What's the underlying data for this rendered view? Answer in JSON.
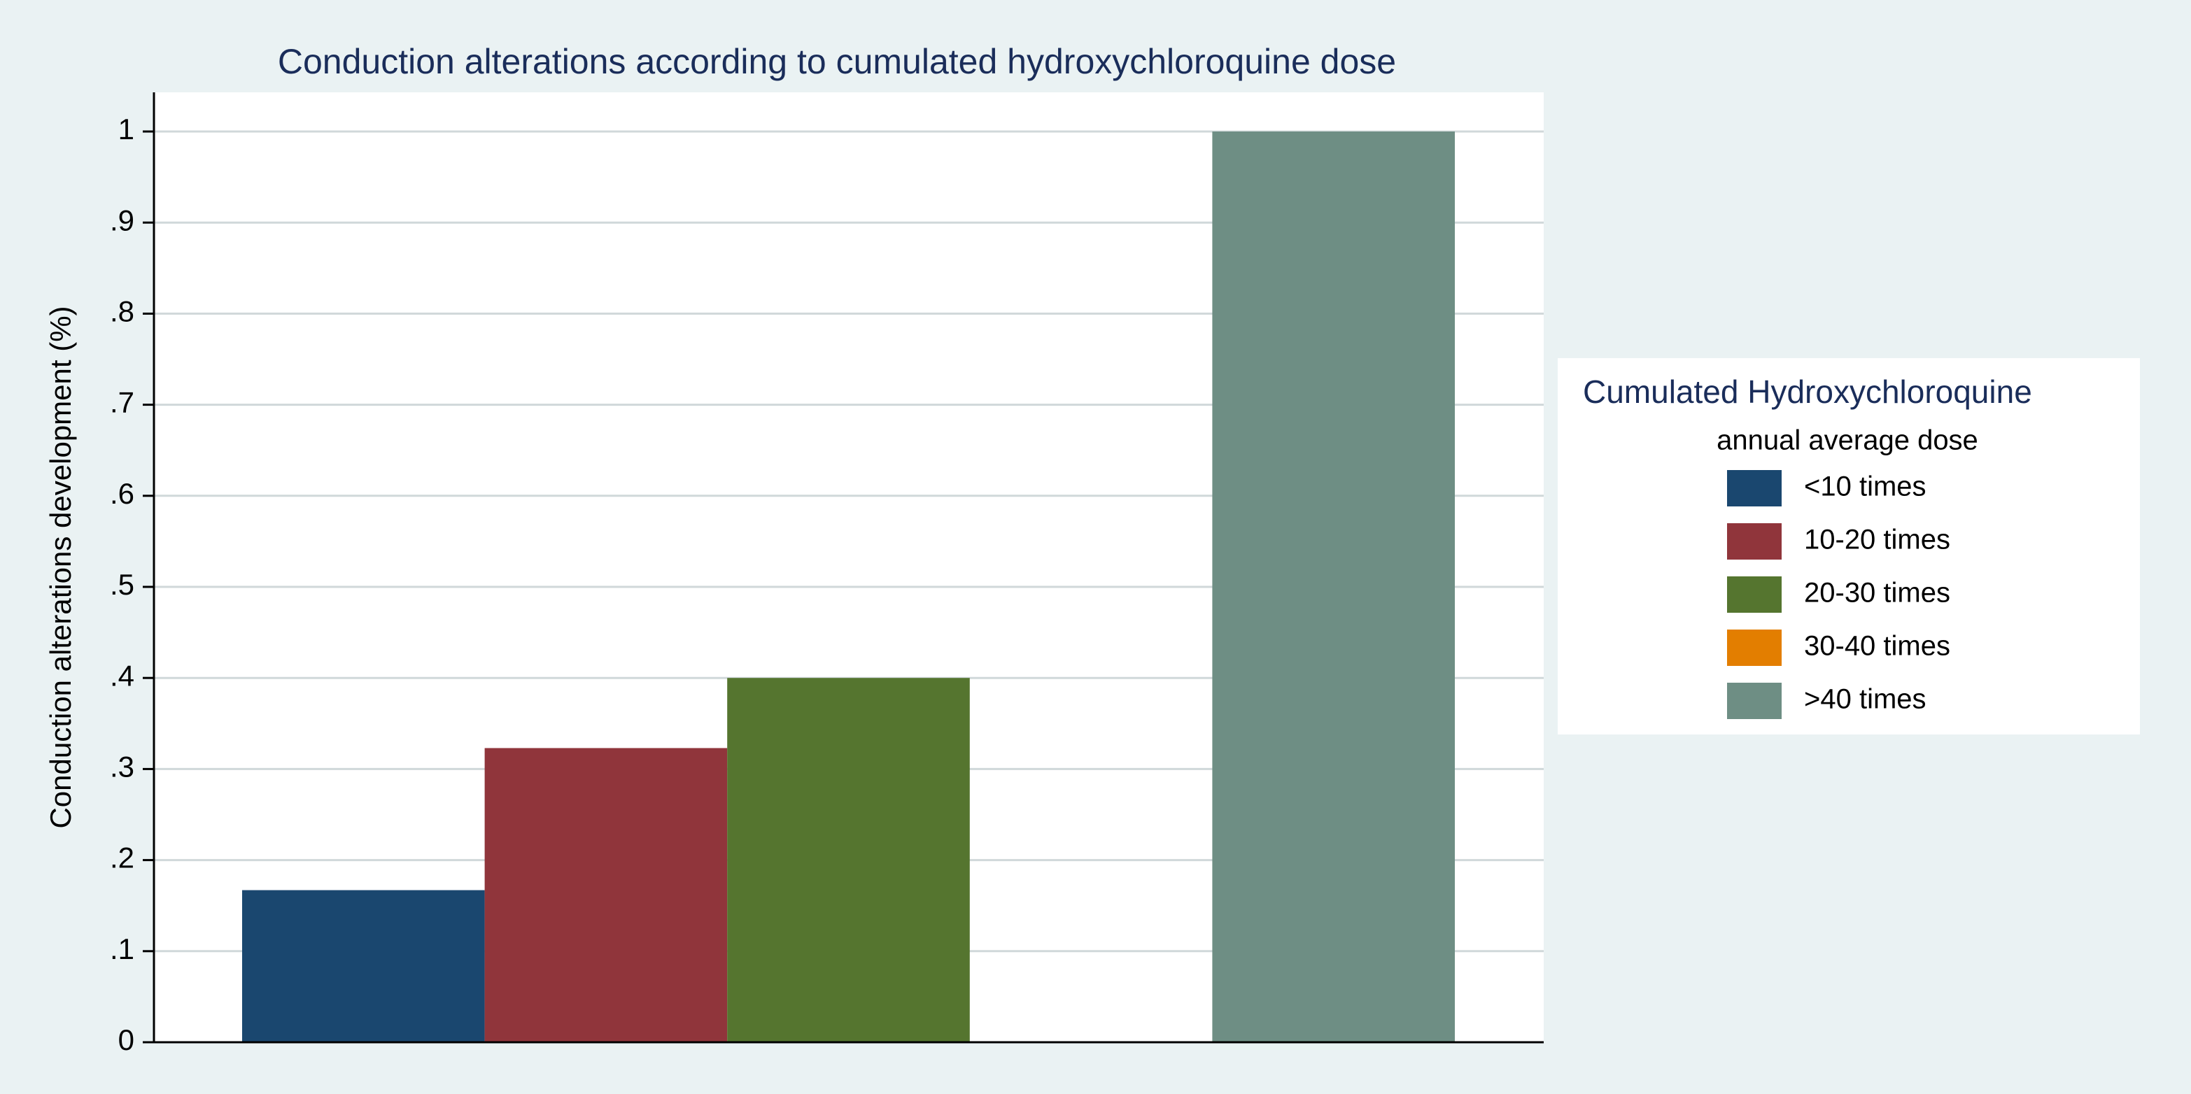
{
  "chart_data": {
    "type": "bar",
    "title": "Conduction alterations according to cumulated hydroxychloroquine dose",
    "y_label": "Conduction alterations development (%)",
    "legend_title": "Cumulated Hydroxychloroquine",
    "legend_subtitle": "annual average dose",
    "legend_position": "right",
    "grid": true,
    "ylim": [
      0,
      1
    ],
    "yticks": [
      0,
      {
        "value": 0.1,
        "label": ".1"
      },
      {
        "value": 0.2,
        "label": ".2"
      },
      {
        "value": 0.3,
        "label": ".3"
      },
      {
        "value": 0.4,
        "label": ".4"
      },
      {
        "value": 0.5,
        "label": ".5"
      },
      {
        "value": 0.6,
        "label": ".6"
      },
      {
        "value": 0.7,
        "label": ".7"
      },
      {
        "value": 0.8,
        "label": ".8"
      },
      {
        "value": 0.9,
        "label": ".9"
      },
      1
    ],
    "series": [
      {
        "name": "<10 times",
        "color": "#1a476f",
        "values": [
          0.167
        ]
      },
      {
        "name": "10-20 times",
        "color": "#90353b",
        "values": [
          0.323
        ]
      },
      {
        "name": "20-30 times",
        "color": "#55752f",
        "values": [
          0.4
        ]
      },
      {
        "name": "30-40 times",
        "color": "#e37e00",
        "values": [
          0
        ]
      },
      {
        "name": ">40 times",
        "color": "#6e8e84",
        "values": [
          1
        ]
      }
    ]
  }
}
